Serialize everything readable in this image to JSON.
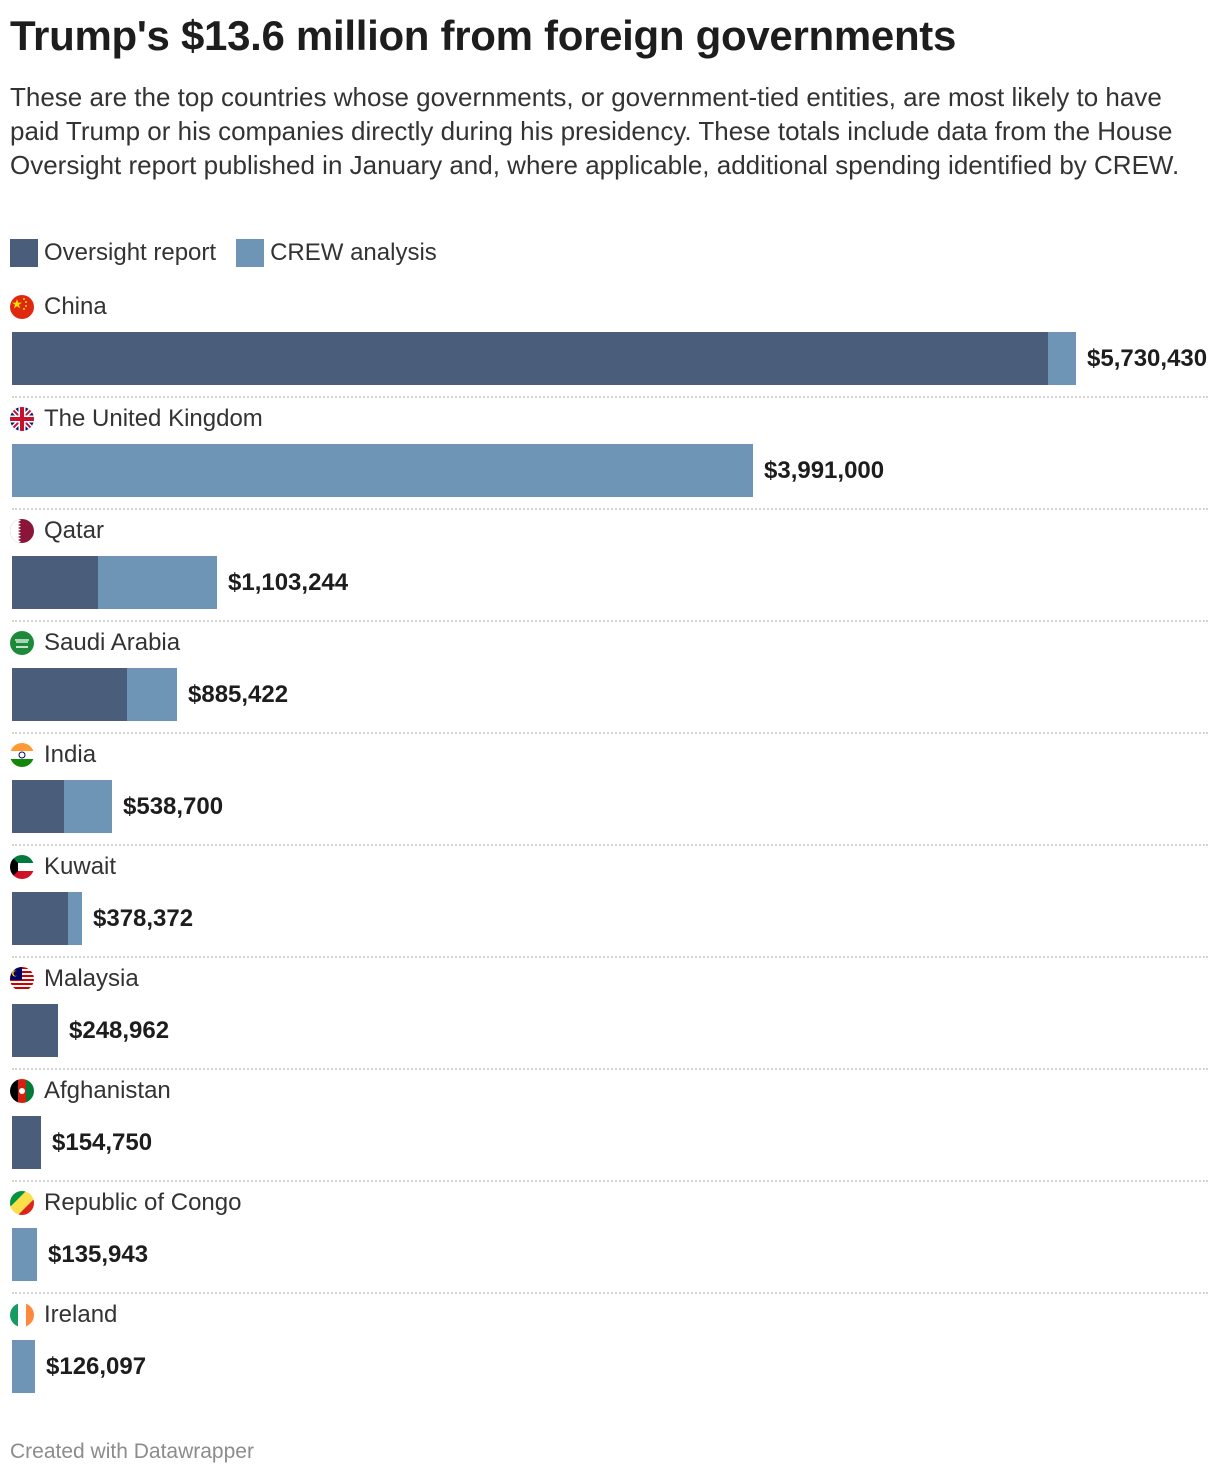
{
  "title": "Trump's $13.6 million from foreign governments",
  "description": "These are the top countries whose governments, or government-tied entities, are most likely to have paid Trump or his companies directly during his presidency. These totals include data from the House Oversight report published in January and, where applicable, additional spending identified by CREW.",
  "legend": [
    {
      "label": "Oversight report",
      "color": "#4a5d7a"
    },
    {
      "label": "CREW analysis",
      "color": "#6e95b6"
    }
  ],
  "footer": "Created with Datawrapper",
  "chart_data": {
    "type": "bar",
    "orientation": "horizontal",
    "stacked": true,
    "title": "Trump's $13.6 million from foreign governments",
    "xlim": [
      0,
      5730430
    ],
    "series": [
      {
        "name": "Oversight report",
        "color": "#4a5d7a",
        "values": [
          5580000,
          0,
          464000,
          618000,
          281000,
          302000,
          248962,
          154750,
          0,
          0
        ]
      },
      {
        "name": "CREW analysis",
        "color": "#6e95b6",
        "values": [
          150430,
          3991000,
          639244,
          267422,
          257700,
          76372,
          0,
          0,
          135943,
          126097
        ]
      }
    ],
    "rows": [
      {
        "country": "China",
        "flag": "china-flag-icon",
        "total_label": "$5,730,430"
      },
      {
        "country": "The United Kingdom",
        "flag": "uk-flag-icon",
        "total_label": "$3,991,000"
      },
      {
        "country": "Qatar",
        "flag": "qatar-flag-icon",
        "total_label": "$1,103,244"
      },
      {
        "country": "Saudi Arabia",
        "flag": "saudi-arabia-flag-icon",
        "total_label": "$885,422"
      },
      {
        "country": "India",
        "flag": "india-flag-icon",
        "total_label": "$538,700"
      },
      {
        "country": "Kuwait",
        "flag": "kuwait-flag-icon",
        "total_label": "$378,372"
      },
      {
        "country": "Malaysia",
        "flag": "malaysia-flag-icon",
        "total_label": "$248,962"
      },
      {
        "country": "Afghanistan",
        "flag": "afghanistan-flag-icon",
        "total_label": "$154,750"
      },
      {
        "country": "Republic of Congo",
        "flag": "congo-flag-icon",
        "total_label": "$135,943"
      },
      {
        "country": "Ireland",
        "flag": "ireland-flag-icon",
        "total_label": "$126,097"
      }
    ]
  }
}
